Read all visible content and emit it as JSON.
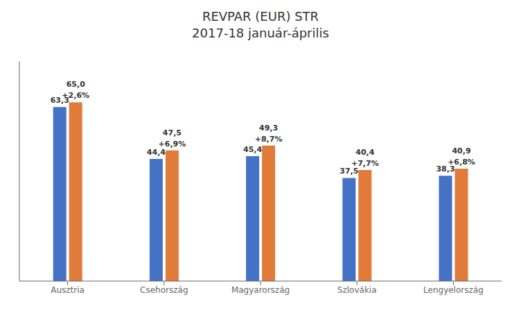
{
  "chart_data": {
    "type": "bar",
    "title": "REVPAR (EUR) STR",
    "subtitle": "2017-18 január-április",
    "categories": [
      "Ausztria",
      "Csehország",
      "Magyarország",
      "Szlovákia",
      "Lengyelország"
    ],
    "series": [
      {
        "color": "#4472C4",
        "values": [
          63.3,
          44.4,
          45.4,
          37.5,
          38.3
        ],
        "value_labels": [
          "63,3",
          "44,4",
          "45,4",
          "37,5",
          "38,3"
        ]
      },
      {
        "color": "#E07B39",
        "values": [
          65.0,
          47.5,
          49.3,
          40.4,
          40.9
        ],
        "value_labels": [
          "65,0",
          "47,5",
          "49,3",
          "40,4",
          "40,9"
        ],
        "change_labels": [
          "+2,6%",
          "+6,9%",
          "+8,7%",
          "+7,7%",
          "+6,8%"
        ]
      }
    ],
    "ylim": [
      0,
      80
    ],
    "grid": false,
    "data_labels": true,
    "tick_labels": "x"
  }
}
